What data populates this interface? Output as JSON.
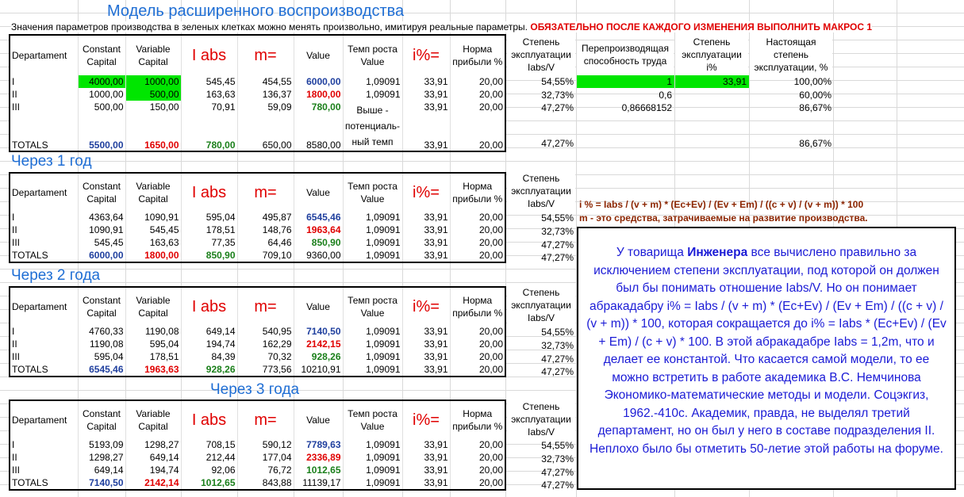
{
  "title": "Модель расширенного воспроизводства",
  "note": {
    "text": "Значения параметров производства в зеленых клетках можно менять произвольно, имитируя реальные параметры. ",
    "warning": "ОБЯЗАТЕЛЬНО ПОСЛЕ КАЖДОГО ИЗМЕНЕНИЯ ВЫПОЛНИТЬ МАКРОС 1"
  },
  "headers": {
    "dept": "Departament",
    "c": "Constant Capital",
    "v": "Variable Capital",
    "iabs": "I abs",
    "m": "m=",
    "value": "Value",
    "growth": "Темп роста Value",
    "ipct": "i%=",
    "profit": "Норма прибыли %",
    "exploit": "Степень эксплуатации Iabs/V",
    "overprod": "Перепроизводящая способность труда",
    "exploit_i": "Степень эксплуатации i%",
    "real": "Настоящая степень эксплуатации, %"
  },
  "colors": {
    "title": "#1f6ed4",
    "red": "#e00000",
    "green": "#1a7f1a",
    "blue": "#1f3f9e",
    "fill": "#00e600",
    "box_text": "#1b1bd6",
    "formula": "#8b2500"
  },
  "block0": {
    "rows": [
      {
        "d": "I",
        "c": "4000,00",
        "v": "1000,00",
        "iabs": "545,45",
        "m": "454,55",
        "val": "6000,00",
        "g": "1,09091",
        "i": "33,91",
        "p": "20,00",
        "e": "54,55%"
      },
      {
        "d": "II",
        "c": "1000,00",
        "v": "500,00",
        "iabs": "163,63",
        "m": "136,37",
        "val": "1800,00",
        "g": "1,09091",
        "i": "33,91",
        "p": "20,00",
        "e": "32,73%"
      },
      {
        "d": "III",
        "c": "500,00",
        "v": "150,00",
        "iabs": "70,91",
        "m": "59,09",
        "val": "780,00",
        "g": "",
        "i": "33,91",
        "p": "20,00",
        "e": "47,27%"
      }
    ],
    "growth_note": "Выше - потенциаль- ный темп",
    "totals": {
      "d": "TOTALS",
      "c": "5500,00",
      "v": "1650,00",
      "iabs": "780,00",
      "m": "650,00",
      "val": "8580,00",
      "i": "33,91",
      "p": "20,00",
      "e": "47,27%"
    },
    "overprod": [
      "1",
      "0,6",
      "0,86668152"
    ],
    "exploit_i": "33,91",
    "real": [
      "100,00%",
      "60,00%",
      "86,67%",
      "86,67%"
    ]
  },
  "block1": {
    "title": "Через 1 год",
    "rows": [
      {
        "d": "I",
        "c": "4363,64",
        "v": "1090,91",
        "iabs": "595,04",
        "m": "495,87",
        "val": "6545,46",
        "g": "1,09091",
        "i": "33,91",
        "p": "20,00",
        "e": "54,55%"
      },
      {
        "d": "II",
        "c": "1090,91",
        "v": "545,45",
        "iabs": "178,51",
        "m": "148,76",
        "val": "1963,64",
        "g": "1,09091",
        "i": "33,91",
        "p": "20,00",
        "e": "32,73%"
      },
      {
        "d": "III",
        "c": "545,45",
        "v": "163,63",
        "iabs": "77,35",
        "m": "64,46",
        "val": "850,90",
        "g": "1,09091",
        "i": "33,91",
        "p": "20,00",
        "e": "47,27%"
      }
    ],
    "totals": {
      "d": "TOTALS",
      "c": "6000,00",
      "v": "1800,00",
      "iabs": "850,90",
      "m": "709,10",
      "val": "9360,00",
      "g": "1,09091",
      "i": "33,91",
      "p": "20,00",
      "e": "47,27%"
    }
  },
  "block2": {
    "title": "Через 2 года",
    "rows": [
      {
        "d": "I",
        "c": "4760,33",
        "v": "1190,08",
        "iabs": "649,14",
        "m": "540,95",
        "val": "7140,50",
        "g": "1,09091",
        "i": "33,91",
        "p": "20,00",
        "e": "54,55%"
      },
      {
        "d": "II",
        "c": "1190,08",
        "v": "595,04",
        "iabs": "194,74",
        "m": "162,29",
        "val": "2142,15",
        "g": "1,09091",
        "i": "33,91",
        "p": "20,00",
        "e": "32,73%"
      },
      {
        "d": "III",
        "c": "595,04",
        "v": "178,51",
        "iabs": "84,39",
        "m": "70,32",
        "val": "928,26",
        "g": "1,09091",
        "i": "33,91",
        "p": "20,00",
        "e": "47,27%"
      }
    ],
    "totals": {
      "d": "TOTALS",
      "c": "6545,46",
      "v": "1963,63",
      "iabs": "928,26",
      "m": "773,56",
      "val": "10210,91",
      "g": "1,09091",
      "i": "33,91",
      "p": "20,00",
      "e": "47,27%"
    }
  },
  "block3": {
    "title": "Через 3 года",
    "rows": [
      {
        "d": "I",
        "c": "5193,09",
        "v": "1298,27",
        "iabs": "708,15",
        "m": "590,12",
        "val": "7789,63",
        "g": "1,09091",
        "i": "33,91",
        "p": "20,00",
        "e": "54,55%"
      },
      {
        "d": "II",
        "c": "1298,27",
        "v": "649,14",
        "iabs": "212,44",
        "m": "177,04",
        "val": "2336,89",
        "g": "1,09091",
        "i": "33,91",
        "p": "20,00",
        "e": "32,73%"
      },
      {
        "d": "III",
        "c": "649,14",
        "v": "194,74",
        "iabs": "92,06",
        "m": "76,72",
        "val": "1012,65",
        "g": "1,09091",
        "i": "33,91",
        "p": "20,00",
        "e": "47,27%"
      }
    ],
    "totals": {
      "d": "TOTALS",
      "c": "7140,50",
      "v": "2142,14",
      "iabs": "1012,65",
      "m": "843,88",
      "val": "11139,17",
      "g": "1,09091",
      "i": "33,91",
      "p": "20,00",
      "e": "47,27%"
    }
  },
  "formula": {
    "line1": "i % = Iabs / (v + m) * (Ec+Ev) / (Ev + Em) / ((c + v) / (v + m)) * 100",
    "line2": "m - это средства, затрачиваемые на развитие производства."
  },
  "commentary": {
    "p1": "У товарища ",
    "bold": "Инженера",
    "p2": " все вычислено правильно за исключением степени эксплуатации, под которой он должен был бы понимать отношение Iabs/V. Но он понимает абракадабру i% = Iabs / (v + m) * (Ec+Ev) / (Ev + Em) / ((c + v) / (v + m)) * 100, которая сокращается до i% = Iabs * (Ec+Ev) / (Ev + Em) / (c + v) * 100. В этой абракадабре Iabs = 1,2m, что и делает ее константой. Что касается самой модели, то ее можно встретить в работе академика В.С. Немчинова Экономико-математические методы и модели. Соцэкгиз, 1962.-410с. Академик, правда, не выделял третий департамент, но он был у него в составе подразделения II. Неплохо было бы отметить 50-летие этой работы на форуме."
  }
}
